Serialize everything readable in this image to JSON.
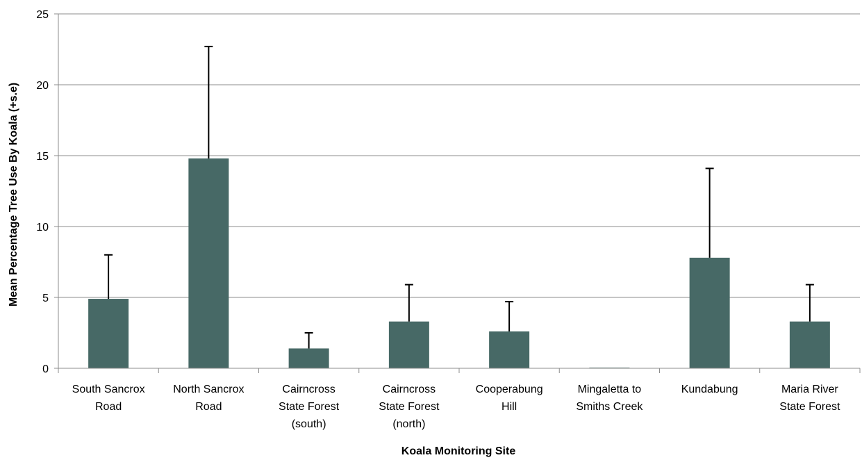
{
  "chart_data": {
    "type": "bar",
    "categories": [
      [
        "South Sancrox",
        "Road"
      ],
      [
        "North Sancrox",
        "Road"
      ],
      [
        "Cairncross",
        "State Forest",
        "(south)"
      ],
      [
        "Cairncross",
        "State Forest",
        "(north)"
      ],
      [
        "Cooperabung",
        "Hill"
      ],
      [
        "Mingaletta to",
        "Smiths Creek"
      ],
      [
        "Kundabung"
      ],
      [
        "Maria River",
        "State Forest"
      ]
    ],
    "values": [
      4.9,
      14.8,
      1.4,
      3.3,
      2.6,
      0,
      7.8,
      3.3
    ],
    "error_plus": [
      3.1,
      7.9,
      1.1,
      2.6,
      2.1,
      0,
      6.3,
      2.6
    ],
    "xlabel": "Koala Monitoring Site",
    "ylabel": "Mean Percentage Tree Use By Koala (+s.e)",
    "ylim": [
      0,
      25
    ],
    "yticks": [
      0,
      5,
      10,
      15,
      20,
      25
    ],
    "grid": true,
    "bar_color": "#476966",
    "legend": "none"
  }
}
